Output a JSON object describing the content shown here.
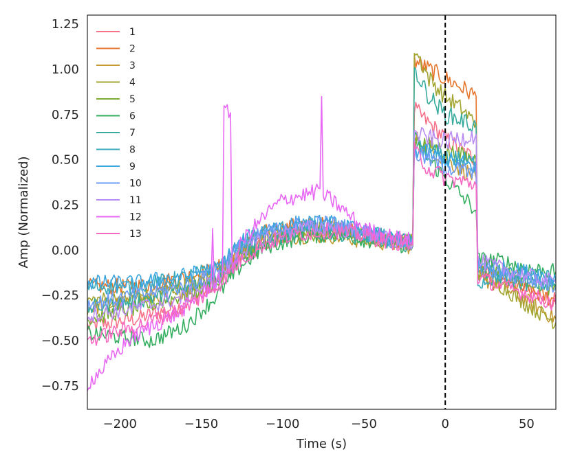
{
  "chart_data": {
    "type": "line",
    "title": "",
    "xlabel": "Time (s)",
    "ylabel": "Amp (Normalized)",
    "xlim": [
      -220,
      68
    ],
    "ylim": [
      -0.88,
      1.3
    ],
    "grid": false,
    "legend_position": "top-left",
    "xticks": [
      -200,
      -150,
      -100,
      -50,
      0,
      50
    ],
    "xtick_labels": [
      "−200",
      "−150",
      "−100",
      "−50",
      "0",
      "50"
    ],
    "yticks": [
      -0.75,
      -0.5,
      -0.25,
      0.0,
      0.25,
      0.5,
      0.75,
      1.0,
      1.25
    ],
    "ytick_labels": [
      "−0.75",
      "−0.50",
      "−0.25",
      "0.00",
      "0.25",
      "0.50",
      "0.75",
      "1.00",
      "1.25"
    ],
    "vline": {
      "x": 0,
      "style": "dashed",
      "color": "#000000"
    },
    "series": [
      {
        "name": "1",
        "color": "#f77189",
        "pre": [
          [
            -220,
            -0.42
          ],
          [
            -190,
            -0.38
          ],
          [
            -160,
            -0.3
          ],
          [
            -140,
            -0.18
          ],
          [
            -125,
            -0.02
          ],
          [
            -110,
            0.05
          ],
          [
            -90,
            0.1
          ],
          [
            -70,
            0.12
          ],
          [
            -50,
            0.09
          ],
          [
            -35,
            0.06
          ],
          [
            -20,
            0.04
          ]
        ],
        "mid": [
          [
            -19,
            0.78
          ],
          [
            -10,
            0.7
          ],
          [
            0,
            0.62
          ],
          [
            10,
            0.55
          ],
          [
            19,
            0.5
          ]
        ],
        "post": [
          [
            20,
            -0.1
          ],
          [
            35,
            -0.16
          ],
          [
            50,
            -0.22
          ],
          [
            68,
            -0.28
          ]
        ]
      },
      {
        "name": "2",
        "color": "#e5752d",
        "pre": [
          [
            -220,
            -0.2
          ],
          [
            -190,
            -0.2
          ],
          [
            -160,
            -0.15
          ],
          [
            -140,
            -0.1
          ],
          [
            -125,
            0.02
          ],
          [
            -110,
            0.1
          ],
          [
            -90,
            0.14
          ],
          [
            -70,
            0.14
          ],
          [
            -50,
            0.1
          ],
          [
            -35,
            0.06
          ],
          [
            -20,
            0.03
          ]
        ],
        "mid": [
          [
            -19,
            1.05
          ],
          [
            -10,
            1.0
          ],
          [
            0,
            0.95
          ],
          [
            10,
            0.9
          ],
          [
            19,
            0.85
          ]
        ],
        "post": [
          [
            20,
            -0.12
          ],
          [
            35,
            -0.18
          ],
          [
            50,
            -0.22
          ],
          [
            68,
            -0.28
          ]
        ]
      },
      {
        "name": "3",
        "color": "#c59a32",
        "pre": [
          [
            -220,
            -0.32
          ],
          [
            -190,
            -0.28
          ],
          [
            -160,
            -0.22
          ],
          [
            -140,
            -0.15
          ],
          [
            -125,
            -0.02
          ],
          [
            -110,
            0.05
          ],
          [
            -90,
            0.08
          ],
          [
            -70,
            0.08
          ],
          [
            -50,
            0.05
          ],
          [
            -35,
            0.04
          ],
          [
            -20,
            0.02
          ]
        ],
        "mid": [
          [
            -19,
            0.62
          ],
          [
            -10,
            0.57
          ],
          [
            0,
            0.5
          ],
          [
            10,
            0.45
          ],
          [
            19,
            0.4
          ]
        ],
        "post": [
          [
            20,
            -0.15
          ],
          [
            35,
            -0.2
          ],
          [
            50,
            -0.28
          ],
          [
            68,
            -0.38
          ]
        ]
      },
      {
        "name": "4",
        "color": "#a3a531",
        "pre": [
          [
            -220,
            -0.28
          ],
          [
            -190,
            -0.26
          ],
          [
            -160,
            -0.2
          ],
          [
            -140,
            -0.14
          ],
          [
            -125,
            0.0
          ],
          [
            -110,
            0.06
          ],
          [
            -90,
            0.1
          ],
          [
            -70,
            0.12
          ],
          [
            -50,
            0.09
          ],
          [
            -35,
            0.07
          ],
          [
            -20,
            0.05
          ]
        ],
        "mid": [
          [
            -19,
            1.12
          ],
          [
            -10,
            0.95
          ],
          [
            0,
            0.85
          ],
          [
            10,
            0.78
          ],
          [
            19,
            0.7
          ]
        ],
        "post": [
          [
            20,
            -0.12
          ],
          [
            35,
            -0.2
          ],
          [
            50,
            -0.3
          ],
          [
            68,
            -0.4
          ]
        ]
      },
      {
        "name": "5",
        "color": "#7caf31",
        "pre": [
          [
            -220,
            -0.38
          ],
          [
            -190,
            -0.32
          ],
          [
            -160,
            -0.25
          ],
          [
            -140,
            -0.18
          ],
          [
            -125,
            -0.03
          ],
          [
            -110,
            0.04
          ],
          [
            -90,
            0.09
          ],
          [
            -70,
            0.1
          ],
          [
            -50,
            0.08
          ],
          [
            -35,
            0.06
          ],
          [
            -20,
            0.04
          ]
        ],
        "mid": [
          [
            -19,
            0.62
          ],
          [
            -10,
            0.58
          ],
          [
            0,
            0.55
          ],
          [
            10,
            0.52
          ],
          [
            19,
            0.5
          ]
        ],
        "post": [
          [
            20,
            -0.06
          ],
          [
            35,
            -0.12
          ],
          [
            50,
            -0.16
          ],
          [
            68,
            -0.22
          ]
        ]
      },
      {
        "name": "6",
        "color": "#35ae60",
        "pre": [
          [
            -220,
            -0.46
          ],
          [
            -200,
            -0.48
          ],
          [
            -180,
            -0.5
          ],
          [
            -160,
            -0.42
          ],
          [
            -140,
            -0.25
          ],
          [
            -125,
            -0.08
          ],
          [
            -110,
            0.02
          ],
          [
            -90,
            0.07
          ],
          [
            -70,
            0.09
          ],
          [
            -50,
            0.06
          ],
          [
            -35,
            0.04
          ],
          [
            -20,
            0.02
          ]
        ],
        "mid": [
          [
            -19,
            0.62
          ],
          [
            -10,
            0.5
          ],
          [
            0,
            0.4
          ],
          [
            10,
            0.3
          ],
          [
            19,
            0.22
          ]
        ],
        "post": [
          [
            20,
            -0.05
          ],
          [
            35,
            -0.06
          ],
          [
            50,
            -0.1
          ],
          [
            68,
            -0.12
          ]
        ]
      },
      {
        "name": "7",
        "color": "#37ab9c",
        "pre": [
          [
            -220,
            -0.32
          ],
          [
            -190,
            -0.28
          ],
          [
            -160,
            -0.22
          ],
          [
            -140,
            -0.15
          ],
          [
            -125,
            -0.02
          ],
          [
            -110,
            0.05
          ],
          [
            -90,
            0.09
          ],
          [
            -70,
            0.1
          ],
          [
            -50,
            0.08
          ],
          [
            -35,
            0.05
          ],
          [
            -20,
            0.03
          ]
        ],
        "mid": [
          [
            -19,
            1.0
          ],
          [
            -10,
            0.85
          ],
          [
            0,
            0.75
          ],
          [
            10,
            0.72
          ],
          [
            19,
            0.68
          ]
        ],
        "post": [
          [
            20,
            -0.1
          ],
          [
            35,
            -0.15
          ],
          [
            50,
            -0.18
          ],
          [
            68,
            -0.2
          ]
        ]
      },
      {
        "name": "8",
        "color": "#38aabb",
        "pre": [
          [
            -220,
            -0.2
          ],
          [
            -190,
            -0.2
          ],
          [
            -160,
            -0.15
          ],
          [
            -140,
            -0.1
          ],
          [
            -125,
            0.04
          ],
          [
            -110,
            0.1
          ],
          [
            -90,
            0.13
          ],
          [
            -70,
            0.14
          ],
          [
            -50,
            0.1
          ],
          [
            -35,
            0.07
          ],
          [
            -20,
            0.04
          ]
        ],
        "mid": [
          [
            -19,
            0.58
          ],
          [
            -10,
            0.55
          ],
          [
            0,
            0.52
          ],
          [
            10,
            0.5
          ],
          [
            19,
            0.48
          ]
        ],
        "post": [
          [
            20,
            -0.18
          ],
          [
            35,
            -0.14
          ],
          [
            50,
            -0.12
          ],
          [
            68,
            -0.16
          ]
        ]
      },
      {
        "name": "9",
        "color": "#3aa5df",
        "pre": [
          [
            -220,
            -0.18
          ],
          [
            -190,
            -0.18
          ],
          [
            -160,
            -0.14
          ],
          [
            -140,
            -0.1
          ],
          [
            -125,
            0.05
          ],
          [
            -110,
            0.12
          ],
          [
            -90,
            0.15
          ],
          [
            -70,
            0.15
          ],
          [
            -50,
            0.1
          ],
          [
            -35,
            0.06
          ],
          [
            -20,
            0.03
          ]
        ],
        "mid": [
          [
            -19,
            0.56
          ],
          [
            -10,
            0.53
          ],
          [
            0,
            0.5
          ],
          [
            10,
            0.48
          ],
          [
            19,
            0.46
          ]
        ],
        "post": [
          [
            20,
            -0.08
          ],
          [
            35,
            -0.1
          ],
          [
            50,
            -0.12
          ],
          [
            68,
            -0.16
          ]
        ]
      },
      {
        "name": "10",
        "color": "#6e9bf4",
        "pre": [
          [
            -220,
            -0.3
          ],
          [
            -190,
            -0.25
          ],
          [
            -160,
            -0.2
          ],
          [
            -140,
            -0.12
          ],
          [
            -125,
            0.03
          ],
          [
            -110,
            0.1
          ],
          [
            -90,
            0.14
          ],
          [
            -70,
            0.15
          ],
          [
            -50,
            0.1
          ],
          [
            -35,
            0.06
          ],
          [
            -20,
            0.03
          ]
        ],
        "mid": [
          [
            -19,
            0.54
          ],
          [
            -10,
            0.5
          ],
          [
            0,
            0.46
          ],
          [
            10,
            0.44
          ],
          [
            19,
            0.42
          ]
        ],
        "post": [
          [
            20,
            -0.1
          ],
          [
            35,
            -0.13
          ],
          [
            50,
            -0.16
          ],
          [
            68,
            -0.2
          ]
        ]
      },
      {
        "name": "11",
        "color": "#b98cf5",
        "pre": [
          [
            -220,
            -0.36
          ],
          [
            -190,
            -0.32
          ],
          [
            -160,
            -0.26
          ],
          [
            -140,
            -0.16
          ],
          [
            -125,
            -0.01
          ],
          [
            -110,
            0.07
          ],
          [
            -90,
            0.12
          ],
          [
            -70,
            0.13
          ],
          [
            -50,
            0.09
          ],
          [
            -35,
            0.06
          ],
          [
            -20,
            0.03
          ]
        ],
        "mid": [
          [
            -19,
            0.64
          ],
          [
            -10,
            0.62
          ],
          [
            0,
            0.6
          ],
          [
            10,
            0.62
          ],
          [
            19,
            0.64
          ]
        ],
        "post": [
          [
            20,
            -0.06
          ],
          [
            35,
            -0.1
          ],
          [
            50,
            -0.14
          ],
          [
            68,
            -0.18
          ]
        ]
      },
      {
        "name": "12",
        "color": "#e866f4",
        "pre": [
          [
            -220,
            -0.74
          ],
          [
            -210,
            -0.65
          ],
          [
            -195,
            -0.5
          ],
          [
            -180,
            -0.42
          ],
          [
            -165,
            -0.35
          ],
          [
            -150,
            -0.25
          ],
          [
            -144,
            -0.2
          ],
          [
            -143,
            0.12
          ],
          [
            -142,
            -0.18
          ],
          [
            -137,
            -0.14
          ],
          [
            -136,
            0.76
          ],
          [
            -132,
            0.76
          ],
          [
            -131,
            -0.1
          ],
          [
            -125,
            0.05
          ],
          [
            -110,
            0.2
          ],
          [
            -100,
            0.28
          ],
          [
            -90,
            0.3
          ],
          [
            -80,
            0.32
          ],
          [
            -77,
            0.34
          ],
          [
            -76,
            0.85
          ],
          [
            -75,
            0.3
          ],
          [
            -70,
            0.28
          ],
          [
            -60,
            0.2
          ],
          [
            -50,
            0.12
          ],
          [
            -35,
            0.08
          ],
          [
            -20,
            0.05
          ]
        ],
        "mid": [],
        "post": []
      },
      {
        "name": "13",
        "color": "#f668c2",
        "pre": [
          [
            -220,
            -0.5
          ],
          [
            -190,
            -0.42
          ],
          [
            -160,
            -0.32
          ],
          [
            -140,
            -0.2
          ],
          [
            -125,
            -0.05
          ],
          [
            -110,
            0.04
          ],
          [
            -90,
            0.09
          ],
          [
            -70,
            0.11
          ],
          [
            -50,
            0.08
          ],
          [
            -35,
            0.05
          ],
          [
            -20,
            0.03
          ]
        ],
        "mid": [
          [
            -19,
            0.55
          ],
          [
            -10,
            0.45
          ],
          [
            0,
            0.4
          ],
          [
            10,
            0.38
          ],
          [
            19,
            0.36
          ]
        ],
        "post": [
          [
            20,
            -0.15
          ],
          [
            35,
            -0.2
          ],
          [
            50,
            -0.24
          ],
          [
            68,
            -0.3
          ]
        ]
      }
    ]
  }
}
